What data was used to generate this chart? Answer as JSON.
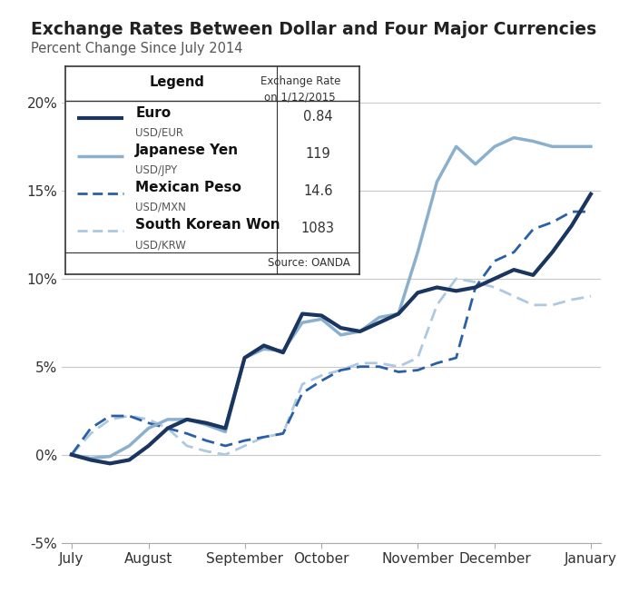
{
  "title": "Exchange Rates Between Dollar and Four Major Currencies",
  "subtitle": "Percent Change Since July 2014",
  "x_labels": [
    "July",
    "August",
    "September",
    "October",
    "November",
    "December",
    "January"
  ],
  "euro": {
    "label": "Euro",
    "sublabel": "USD/EUR",
    "rate": "0.84",
    "color": "#1a3560",
    "linewidth": 3.0,
    "linestyle": "solid",
    "y": [
      0.0,
      -0.3,
      -0.5,
      -0.3,
      0.5,
      1.5,
      2.0,
      1.8,
      1.5,
      5.5,
      6.2,
      5.8,
      8.0,
      7.9,
      7.2,
      7.0,
      7.5,
      8.0,
      9.2,
      9.5,
      9.3,
      9.5,
      10.0,
      10.5,
      10.2,
      11.5,
      13.0,
      14.8
    ]
  },
  "yen": {
    "label": "Japanese Yen",
    "sublabel": "USD/JPY",
    "rate": "119",
    "color": "#8ab0ce",
    "linewidth": 2.5,
    "linestyle": "solid",
    "y": [
      0.0,
      -0.2,
      -0.1,
      0.5,
      1.5,
      2.0,
      2.0,
      1.7,
      1.3,
      5.5,
      6.0,
      5.9,
      7.5,
      7.7,
      6.8,
      7.0,
      7.8,
      8.0,
      11.5,
      15.5,
      17.5,
      16.5,
      17.5,
      18.0,
      17.8,
      17.5,
      17.5,
      17.5
    ]
  },
  "peso": {
    "label": "Mexican Peso",
    "sublabel": "USD/MXN",
    "rate": "14.6",
    "color": "#2a5fa8",
    "linewidth": 2.0,
    "y": [
      0.0,
      1.5,
      2.2,
      2.2,
      1.8,
      1.5,
      1.2,
      0.8,
      0.5,
      0.8,
      1.0,
      1.2,
      3.5,
      4.2,
      4.8,
      5.0,
      5.0,
      4.7,
      4.8,
      5.2,
      5.5,
      9.5,
      11.0,
      11.5,
      12.8,
      13.2,
      13.8,
      13.8
    ]
  },
  "won": {
    "label": "South Korean Won",
    "sublabel": "USD/KRW",
    "rate": "1083",
    "color": "#adc8e0",
    "linewidth": 2.0,
    "y": [
      0.0,
      1.2,
      2.0,
      2.2,
      2.0,
      1.5,
      0.5,
      0.2,
      0.0,
      0.5,
      1.0,
      1.2,
      4.0,
      4.5,
      4.8,
      5.2,
      5.2,
      5.0,
      5.5,
      8.5,
      10.0,
      9.8,
      9.5,
      9.0,
      8.5,
      8.5,
      8.8,
      9.0
    ]
  },
  "ylim": [
    -5,
    20
  ],
  "yticks": [
    -5,
    0,
    5,
    10,
    15,
    20
  ],
  "background_color": "#ffffff",
  "grid_color": "#c8c8c8",
  "n_points": 28,
  "x_tick_positions": [
    0,
    4,
    9,
    13,
    18,
    22,
    27
  ]
}
